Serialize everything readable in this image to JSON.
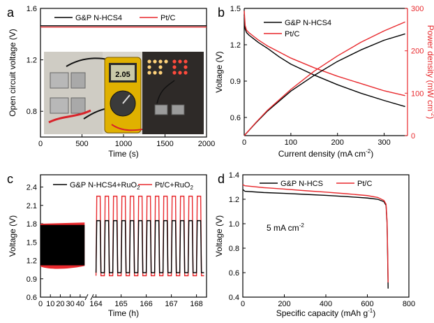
{
  "colors": {
    "black": "#000000",
    "red": "#e8292d"
  },
  "chart_data": [
    {
      "id": "a",
      "panel_label": "a",
      "type": "line",
      "xlabel": "Time (s)",
      "ylabel": "Open circuit voltage (V)",
      "xlim": [
        0,
        2000
      ],
      "ylim": [
        0.6,
        1.6
      ],
      "xticks": [
        0,
        500,
        1000,
        1500,
        2000
      ],
      "yticks": [
        0.8,
        1.2,
        1.6
      ],
      "legend": "top",
      "photo_inset": "device photograph with multimeter reading 2.05 and LED panel",
      "series": [
        {
          "name": "G&P N-HCS4",
          "color": "#000000",
          "x": [
            0,
            2000
          ],
          "y": [
            1.465,
            1.465
          ]
        },
        {
          "name": "Pt/C",
          "color": "#e8292d",
          "x": [
            0,
            2000
          ],
          "y": [
            1.455,
            1.455
          ]
        }
      ]
    },
    {
      "id": "b",
      "panel_label": "b",
      "type": "line",
      "xlabel": "Current density (mA cm",
      "xlabel_sup": "-2",
      "xlabel_end": ")",
      "ylabel": "Voltage (V)",
      "ylabel_right": "Power density (mW cm",
      "ylabel_right_sup": "-2",
      "ylabel_right_end": ")",
      "xlim": [
        0,
        350
      ],
      "ylim": [
        0.45,
        1.5
      ],
      "ylim_right": [
        0,
        300
      ],
      "xticks": [
        0,
        100,
        200,
        300
      ],
      "yticks": [
        0.6,
        0.9,
        1.2,
        1.5
      ],
      "yticks_right": [
        0,
        100,
        200,
        300
      ],
      "legend": "top-center",
      "series": [
        {
          "name": "G&P N-HCS4",
          "color": "#000000",
          "axis": "left",
          "x": [
            0,
            2,
            5,
            10,
            20,
            30,
            50,
            75,
            100,
            150,
            200,
            250,
            300,
            345
          ],
          "y": [
            1.45,
            1.33,
            1.3,
            1.28,
            1.25,
            1.22,
            1.17,
            1.1,
            1.04,
            0.95,
            0.87,
            0.8,
            0.74,
            0.69
          ]
        },
        {
          "name": "Pt/C",
          "color": "#e8292d",
          "axis": "left",
          "x": [
            0,
            2,
            5,
            10,
            20,
            30,
            50,
            75,
            100,
            150,
            200,
            250,
            300,
            345
          ],
          "y": [
            1.48,
            1.36,
            1.32,
            1.3,
            1.27,
            1.24,
            1.19,
            1.14,
            1.09,
            1.01,
            0.94,
            0.88,
            0.82,
            0.78
          ]
        },
        {
          "name": "G&P N-HCS4 power",
          "color": "#000000",
          "axis": "right",
          "x": [
            0,
            25,
            50,
            100,
            150,
            200,
            250,
            300,
            345
          ],
          "y": [
            0,
            30,
            58,
            105,
            142,
            175,
            202,
            225,
            240
          ]
        },
        {
          "name": "Pt/C power",
          "color": "#e8292d",
          "axis": "right",
          "x": [
            0,
            25,
            50,
            100,
            150,
            200,
            250,
            300,
            345
          ],
          "y": [
            0,
            31,
            60,
            109,
            152,
            188,
            220,
            247,
            268
          ]
        }
      ]
    },
    {
      "id": "c",
      "panel_label": "c",
      "type": "line",
      "xlabel": "Time (h)",
      "ylabel": "Voltage (V)",
      "ylim": [
        0.6,
        2.6
      ],
      "yticks": [
        0.6,
        0.9,
        1.2,
        1.5,
        1.8,
        2.1,
        2.4
      ],
      "xticks_left": [
        0,
        10,
        20,
        30,
        40
      ],
      "xticks_right": [
        164,
        165,
        166,
        167,
        168
      ],
      "legend": "top",
      "break": "axis break between 45 and 164",
      "series": [
        {
          "name": "G&P N-HCS4+RuO",
          "name_sub": "2",
          "color": "#000000",
          "charge_voltage": 1.85,
          "discharge_voltage": 1.0,
          "early_high": 1.78,
          "early_low": 1.12
        },
        {
          "name": "Pt/C+RuO",
          "name_sub": "2",
          "color": "#e8292d",
          "charge_voltage": 2.25,
          "discharge_voltage": 0.95,
          "early_high": 1.8,
          "early_low": 1.06
        }
      ]
    },
    {
      "id": "d",
      "panel_label": "d",
      "type": "line",
      "xlabel": "Specific capacity (mAh g",
      "xlabel_sup": "-1",
      "xlabel_end": ")",
      "ylabel": "Voltage (V)",
      "xlim": [
        0,
        800
      ],
      "ylim": [
        0.4,
        1.4
      ],
      "xticks": [
        0,
        200,
        400,
        600,
        800
      ],
      "yticks": [
        0.4,
        0.6,
        0.8,
        1.0,
        1.2,
        1.4
      ],
      "legend": "top",
      "annotation": "5 mA cm",
      "annotation_sup": "-2",
      "series": [
        {
          "name": "G&P N-HCS",
          "color": "#000000",
          "x": [
            0,
            10,
            100,
            200,
            300,
            400,
            500,
            600,
            650,
            680,
            690,
            695,
            698,
            700
          ],
          "y": [
            1.28,
            1.265,
            1.255,
            1.248,
            1.24,
            1.232,
            1.222,
            1.21,
            1.2,
            1.18,
            1.15,
            1.0,
            0.7,
            0.47
          ]
        },
        {
          "name": "Pt/C",
          "color": "#e8292d",
          "x": [
            0,
            10,
            100,
            200,
            300,
            400,
            500,
            600,
            650,
            680,
            690,
            695,
            698,
            700
          ],
          "y": [
            1.32,
            1.31,
            1.295,
            1.283,
            1.27,
            1.258,
            1.245,
            1.23,
            1.215,
            1.19,
            1.16,
            1.02,
            0.75,
            0.52
          ]
        }
      ]
    }
  ]
}
